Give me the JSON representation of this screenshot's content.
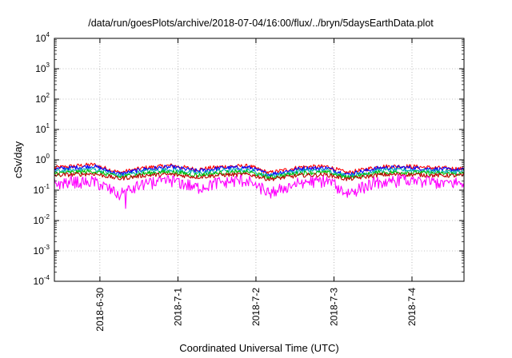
{
  "chart_data": {
    "type": "line",
    "title": "/data/run/goesPlots/archive/2018-07-04/16:00/flux/../bryn/5daysEarthData.plot",
    "xlabel": "Coordinated Universal Time (UTC)",
    "ylabel": "cSv/day",
    "y_scale": "log",
    "ylim": [
      0.0001,
      10000
    ],
    "y_ticks": [
      {
        "value": 0.0001,
        "base": "10",
        "exp": "-4"
      },
      {
        "value": 0.001,
        "base": "10",
        "exp": "-3"
      },
      {
        "value": 0.01,
        "base": "10",
        "exp": "-2"
      },
      {
        "value": 0.1,
        "base": "10",
        "exp": "-1"
      },
      {
        "value": 1,
        "base": "10",
        "exp": "0"
      },
      {
        "value": 10,
        "base": "10",
        "exp": "1"
      },
      {
        "value": 100,
        "base": "10",
        "exp": "2"
      },
      {
        "value": 1000,
        "base": "10",
        "exp": "3"
      },
      {
        "value": 10000,
        "base": "10",
        "exp": "4"
      }
    ],
    "xlim": [
      "2018-06-29 10:00",
      "2018-07-04 16:00"
    ],
    "x_ticks": [
      "2018-6-30",
      "2018-7-1",
      "2018-7-2",
      "2018-7-3",
      "2018-7-4"
    ],
    "x_tick_dates": [
      "2018-06-30 00:00",
      "2018-07-01 00:00",
      "2018-07-02 00:00",
      "2018-07-03 00:00",
      "2018-07-04 00:00"
    ],
    "grid": true,
    "grid_style": "dotted",
    "legend": "none",
    "series": [
      {
        "color": "#ff0000",
        "x": [
          "2018-06-29 10:00",
          "2018-06-29 22:00",
          "2018-06-30 06:00",
          "2018-06-30 14:00",
          "2018-06-30 22:00",
          "2018-07-01 06:00",
          "2018-07-01 14:00",
          "2018-07-01 22:00",
          "2018-07-02 04:00",
          "2018-07-02 14:00",
          "2018-07-02 22:00",
          "2018-07-03 04:00",
          "2018-07-03 14:00",
          "2018-07-03 22:00",
          "2018-07-04 06:00",
          "2018-07-04 16:00"
        ],
        "values": [
          0.55,
          0.7,
          0.38,
          0.55,
          0.65,
          0.48,
          0.6,
          0.62,
          0.37,
          0.58,
          0.6,
          0.37,
          0.6,
          0.62,
          0.55,
          0.5
        ]
      },
      {
        "color": "#0000ff",
        "x": [
          "2018-06-29 10:00",
          "2018-06-29 22:00",
          "2018-06-30 06:00",
          "2018-06-30 14:00",
          "2018-06-30 22:00",
          "2018-07-01 06:00",
          "2018-07-01 14:00",
          "2018-07-01 22:00",
          "2018-07-02 04:00",
          "2018-07-02 14:00",
          "2018-07-02 22:00",
          "2018-07-03 04:00",
          "2018-07-03 14:00",
          "2018-07-03 22:00",
          "2018-07-04 06:00",
          "2018-07-04 16:00"
        ],
        "values": [
          0.5,
          0.62,
          0.34,
          0.5,
          0.58,
          0.43,
          0.54,
          0.56,
          0.33,
          0.52,
          0.54,
          0.33,
          0.54,
          0.56,
          0.5,
          0.46
        ]
      },
      {
        "color": "#00b0b0",
        "x": [
          "2018-06-29 10:00",
          "2018-06-29 22:00",
          "2018-06-30 06:00",
          "2018-06-30 14:00",
          "2018-06-30 22:00",
          "2018-07-01 06:00",
          "2018-07-01 14:00",
          "2018-07-01 22:00",
          "2018-07-02 04:00",
          "2018-07-02 14:00",
          "2018-07-02 22:00",
          "2018-07-03 04:00",
          "2018-07-03 14:00",
          "2018-07-03 22:00",
          "2018-07-04 06:00",
          "2018-07-04 16:00"
        ],
        "values": [
          0.42,
          0.5,
          0.3,
          0.42,
          0.48,
          0.36,
          0.45,
          0.46,
          0.29,
          0.44,
          0.45,
          0.29,
          0.45,
          0.46,
          0.42,
          0.4
        ]
      },
      {
        "color": "#00c000",
        "x": [
          "2018-06-29 10:00",
          "2018-06-29 22:00",
          "2018-06-30 06:00",
          "2018-06-30 14:00",
          "2018-06-30 22:00",
          "2018-07-01 06:00",
          "2018-07-01 14:00",
          "2018-07-01 22:00",
          "2018-07-02 04:00",
          "2018-07-02 14:00",
          "2018-07-02 22:00",
          "2018-07-03 04:00",
          "2018-07-03 14:00",
          "2018-07-03 22:00",
          "2018-07-04 06:00",
          "2018-07-04 16:00"
        ],
        "values": [
          0.36,
          0.42,
          0.27,
          0.36,
          0.4,
          0.31,
          0.38,
          0.39,
          0.26,
          0.37,
          0.38,
          0.26,
          0.38,
          0.39,
          0.36,
          0.34
        ]
      },
      {
        "color": "#c00000",
        "x": [
          "2018-06-29 10:00",
          "2018-06-29 22:00",
          "2018-06-30 06:00",
          "2018-06-30 14:00",
          "2018-06-30 22:00",
          "2018-07-01 06:00",
          "2018-07-01 14:00",
          "2018-07-01 22:00",
          "2018-07-02 04:00",
          "2018-07-02 14:00",
          "2018-07-02 22:00",
          "2018-07-03 04:00",
          "2018-07-03 14:00",
          "2018-07-03 22:00",
          "2018-07-04 06:00",
          "2018-07-04 16:00"
        ],
        "values": [
          0.31,
          0.35,
          0.24,
          0.31,
          0.33,
          0.27,
          0.32,
          0.33,
          0.23,
          0.31,
          0.32,
          0.23,
          0.32,
          0.33,
          0.31,
          0.3
        ]
      },
      {
        "color": "#ff00ff",
        "x": [
          "2018-06-29 10:00",
          "2018-06-29 22:00",
          "2018-06-30 06:00",
          "2018-06-30 14:00",
          "2018-06-30 22:00",
          "2018-07-01 06:00",
          "2018-07-01 14:00",
          "2018-07-01 22:00",
          "2018-07-02 04:00",
          "2018-07-02 14:00",
          "2018-07-02 22:00",
          "2018-07-03 04:00",
          "2018-07-03 14:00",
          "2018-07-03 22:00",
          "2018-07-04 06:00",
          "2018-07-04 16:00"
        ],
        "values": [
          0.17,
          0.2,
          0.07,
          0.17,
          0.21,
          0.12,
          0.19,
          0.21,
          0.08,
          0.19,
          0.2,
          0.08,
          0.19,
          0.21,
          0.18,
          0.17
        ],
        "minimum": {
          "x": "2018-06-30 08:00",
          "value": 0.025
        }
      }
    ]
  }
}
